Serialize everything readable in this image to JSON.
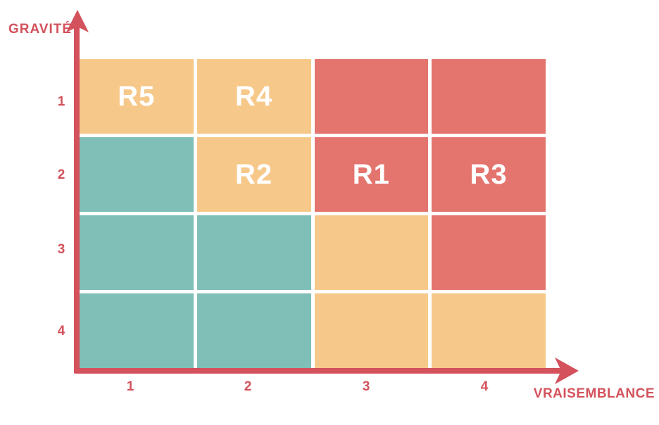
{
  "chart_data": {
    "type": "heatmap",
    "title": "",
    "xlabel": "VRAISEMBLANCE",
    "ylabel": "GRAVITÉ",
    "x_ticks": [
      "1",
      "2",
      "3",
      "4"
    ],
    "y_ticks": [
      "1",
      "2",
      "3",
      "4"
    ],
    "x_axis_range": [
      1,
      4
    ],
    "y_axis_range": [
      1,
      4
    ],
    "grid": "white-gaps",
    "legend_position": "none",
    "cells": [
      [
        "orange",
        "orange",
        "red",
        "red"
      ],
      [
        "teal",
        "orange",
        "red",
        "red"
      ],
      [
        "teal",
        "teal",
        "orange",
        "red"
      ],
      [
        "teal",
        "teal",
        "orange",
        "orange"
      ]
    ],
    "cell_levels_meaning": {
      "teal": "low",
      "orange": "medium",
      "red": "high"
    },
    "risk_labels": [
      {
        "text": "R5",
        "row": 1,
        "col": 1
      },
      {
        "text": "R4",
        "row": 1,
        "col": 2
      },
      {
        "text": "R2",
        "row": 2,
        "col": 2
      },
      {
        "text": "R1",
        "row": 2,
        "col": 3
      },
      {
        "text": "R3",
        "row": 2,
        "col": 4
      }
    ],
    "colors": {
      "red": "#e4746e",
      "orange": "#f6c98b",
      "teal": "#7fbfb7",
      "axis": "#d3525c",
      "label_text": "#ffffff"
    }
  }
}
